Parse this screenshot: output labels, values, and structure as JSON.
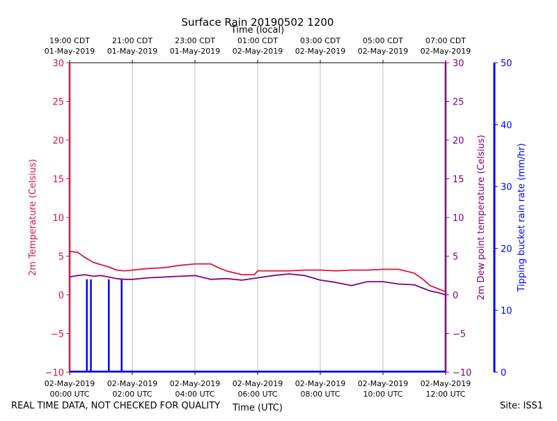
{
  "chart_data": {
    "type": "line",
    "title": "Surface Rain 20190502 1200",
    "top_axis_label": "Time (local)",
    "xlabel": "Time (UTC)",
    "top_ticks": [
      {
        "l1": "19:00 CDT",
        "l2": "01-May-2019"
      },
      {
        "l1": "21:00 CDT",
        "l2": "01-May-2019"
      },
      {
        "l1": "23:00 CDT",
        "l2": "01-May-2019"
      },
      {
        "l1": "01:00 CDT",
        "l2": "02-May-2019"
      },
      {
        "l1": "03:00 CDT",
        "l2": "02-May-2019"
      },
      {
        "l1": "05:00 CDT",
        "l2": "02-May-2019"
      },
      {
        "l1": "07:00 CDT",
        "l2": "02-May-2019"
      }
    ],
    "bottom_ticks": [
      {
        "l1": "02-May-2019",
        "l2": "00:00 UTC"
      },
      {
        "l1": "02-May-2019",
        "l2": "02:00 UTC"
      },
      {
        "l1": "02-May-2019",
        "l2": "04:00 UTC"
      },
      {
        "l1": "02-May-2019",
        "l2": "06:00 UTC"
      },
      {
        "l1": "02-May-2019",
        "l2": "08:00 UTC"
      },
      {
        "l1": "02-May-2019",
        "l2": "10:00 UTC"
      },
      {
        "l1": "02-May-2019",
        "l2": "12:00 UTC"
      }
    ],
    "xlim_hours": [
      0,
      12
    ],
    "left_axis": {
      "label": "2m Temperature (Celsius)",
      "ylim": [
        -10,
        30
      ],
      "ticks": [
        30,
        25,
        20,
        15,
        10,
        5,
        0,
        -5,
        -10
      ],
      "color": "#dc143c"
    },
    "right_axis_1": {
      "label": "2m Dew point temperature (Celsius)",
      "ylim": [
        -10,
        30
      ],
      "ticks": [
        30,
        25,
        20,
        15,
        10,
        5,
        0,
        -5,
        -10
      ],
      "color": "#800080"
    },
    "right_axis_2": {
      "label": "Tipping bucket rain rate (mm/hr)",
      "ylim": [
        0,
        50
      ],
      "ticks": [
        50,
        40,
        30,
        20,
        10,
        0
      ],
      "color": "#0000ff"
    },
    "series": [
      {
        "name": "2m Temperature",
        "color": "#dc143c",
        "x": [
          0,
          0.25,
          0.5,
          0.75,
          1.0,
          1.25,
          1.5,
          1.75,
          2.0,
          2.5,
          3.0,
          3.5,
          4.0,
          4.5,
          4.75,
          5.0,
          5.5,
          5.9,
          6.0,
          6.5,
          7.0,
          7.5,
          8.0,
          8.5,
          9.0,
          9.5,
          10.0,
          10.5,
          11.0,
          11.25,
          11.5,
          11.75,
          12.0
        ],
        "values": [
          5.6,
          5.5,
          4.8,
          4.2,
          3.9,
          3.6,
          3.2,
          3.1,
          3.2,
          3.4,
          3.5,
          3.8,
          4.0,
          4.0,
          3.5,
          3.1,
          2.6,
          2.6,
          3.1,
          3.1,
          3.1,
          3.2,
          3.2,
          3.1,
          3.2,
          3.2,
          3.3,
          3.3,
          2.8,
          2.1,
          1.2,
          0.8,
          0.4
        ]
      },
      {
        "name": "2m Dew point temperature",
        "color": "#800080",
        "x": [
          0,
          0.25,
          0.5,
          0.75,
          1.0,
          1.25,
          1.5,
          1.75,
          2.0,
          2.5,
          3.0,
          3.5,
          4.0,
          4.5,
          5.0,
          5.5,
          6.0,
          6.5,
          7.0,
          7.5,
          8.0,
          8.5,
          9.0,
          9.5,
          10.0,
          10.5,
          11.0,
          11.25,
          11.5,
          11.75,
          12.0
        ],
        "values": [
          2.3,
          2.5,
          2.6,
          2.4,
          2.5,
          2.3,
          2.1,
          2.0,
          2.0,
          2.2,
          2.3,
          2.4,
          2.5,
          2.0,
          2.1,
          1.9,
          2.2,
          2.5,
          2.7,
          2.5,
          1.9,
          1.6,
          1.2,
          1.7,
          1.7,
          1.4,
          1.3,
          0.9,
          0.5,
          0.3,
          0.0
        ]
      }
    ],
    "rain_spikes": [
      {
        "x": 0.55,
        "value": 15
      },
      {
        "x": 0.68,
        "value": 15
      },
      {
        "x": 1.25,
        "value": 15
      },
      {
        "x": 1.66,
        "value": 15
      }
    ]
  },
  "footer": {
    "disclaimer": "REAL TIME DATA, NOT CHECKED FOR QUALITY",
    "site": "Site: ISS1"
  }
}
